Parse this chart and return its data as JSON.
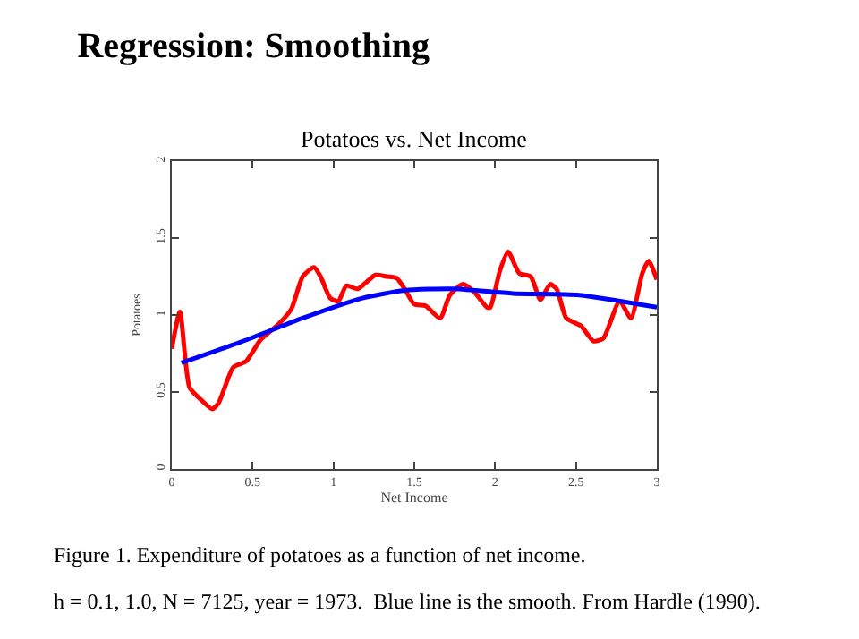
{
  "chart_data": {
    "type": "line",
    "title": "Regression: Smoothing",
    "subtitle": "Potatoes vs. Net Income",
    "xlabel": "Net Income",
    "ylabel": "Potatoes",
    "xlim": [
      0,
      3
    ],
    "xticks": [
      0,
      0.5,
      1,
      1.5,
      2,
      2.5,
      3
    ],
    "ylim": [
      0,
      2
    ],
    "yticks": [
      0,
      0.5,
      1,
      1.5,
      2
    ],
    "grid": false,
    "marker": "none",
    "line_style": "solid",
    "series": [
      {
        "color": "#ff0000",
        "x": [
          0,
          0.05,
          0.11,
          0.18,
          0.25,
          0.29,
          0.38,
          0.46,
          0.55,
          0.66,
          0.74,
          0.81,
          0.88,
          0.92,
          0.98,
          1.03,
          1.08,
          1.15,
          1.26,
          1.33,
          1.39,
          1.44,
          1.5,
          1.57,
          1.66,
          1.72,
          1.8,
          1.87,
          1.95,
          1.97,
          2.03,
          2.08,
          2.15,
          2.22,
          2.28,
          2.34,
          2.38,
          2.44,
          2.53,
          2.61,
          2.67,
          2.77,
          2.84,
          2.91,
          2.95,
          3
        ],
        "values": [
          0.78,
          1.02,
          0.53,
          0.45,
          0.39,
          0.43,
          0.66,
          0.7,
          0.84,
          0.94,
          1.04,
          1.25,
          1.31,
          1.25,
          1.11,
          1.09,
          1.19,
          1.17,
          1.26,
          1.25,
          1.24,
          1.17,
          1.07,
          1.06,
          0.98,
          1.13,
          1.2,
          1.15,
          1.05,
          1.05,
          1.29,
          1.41,
          1.27,
          1.25,
          1.1,
          1.2,
          1.17,
          0.98,
          0.93,
          0.83,
          0.85,
          1.09,
          0.98,
          1.27,
          1.35,
          1.23
        ]
      },
      {
        "color": "#0000ff",
        "x": [
          0.06,
          0.44,
          0.81,
          1.18,
          1.44,
          1.74,
          2.11,
          2.52,
          3
        ],
        "values": [
          0.69,
          0.83,
          0.98,
          1.11,
          1.16,
          1.17,
          1.14,
          1.13,
          1.05
        ]
      }
    ],
    "annotations": [
      "Figure 1. Expenditure of potatoes as a function of net income.",
      "h = 0.1, 1.0, N = 7125, year = 1973.  Blue line is the smooth. From Hardle (1990)."
    ]
  }
}
